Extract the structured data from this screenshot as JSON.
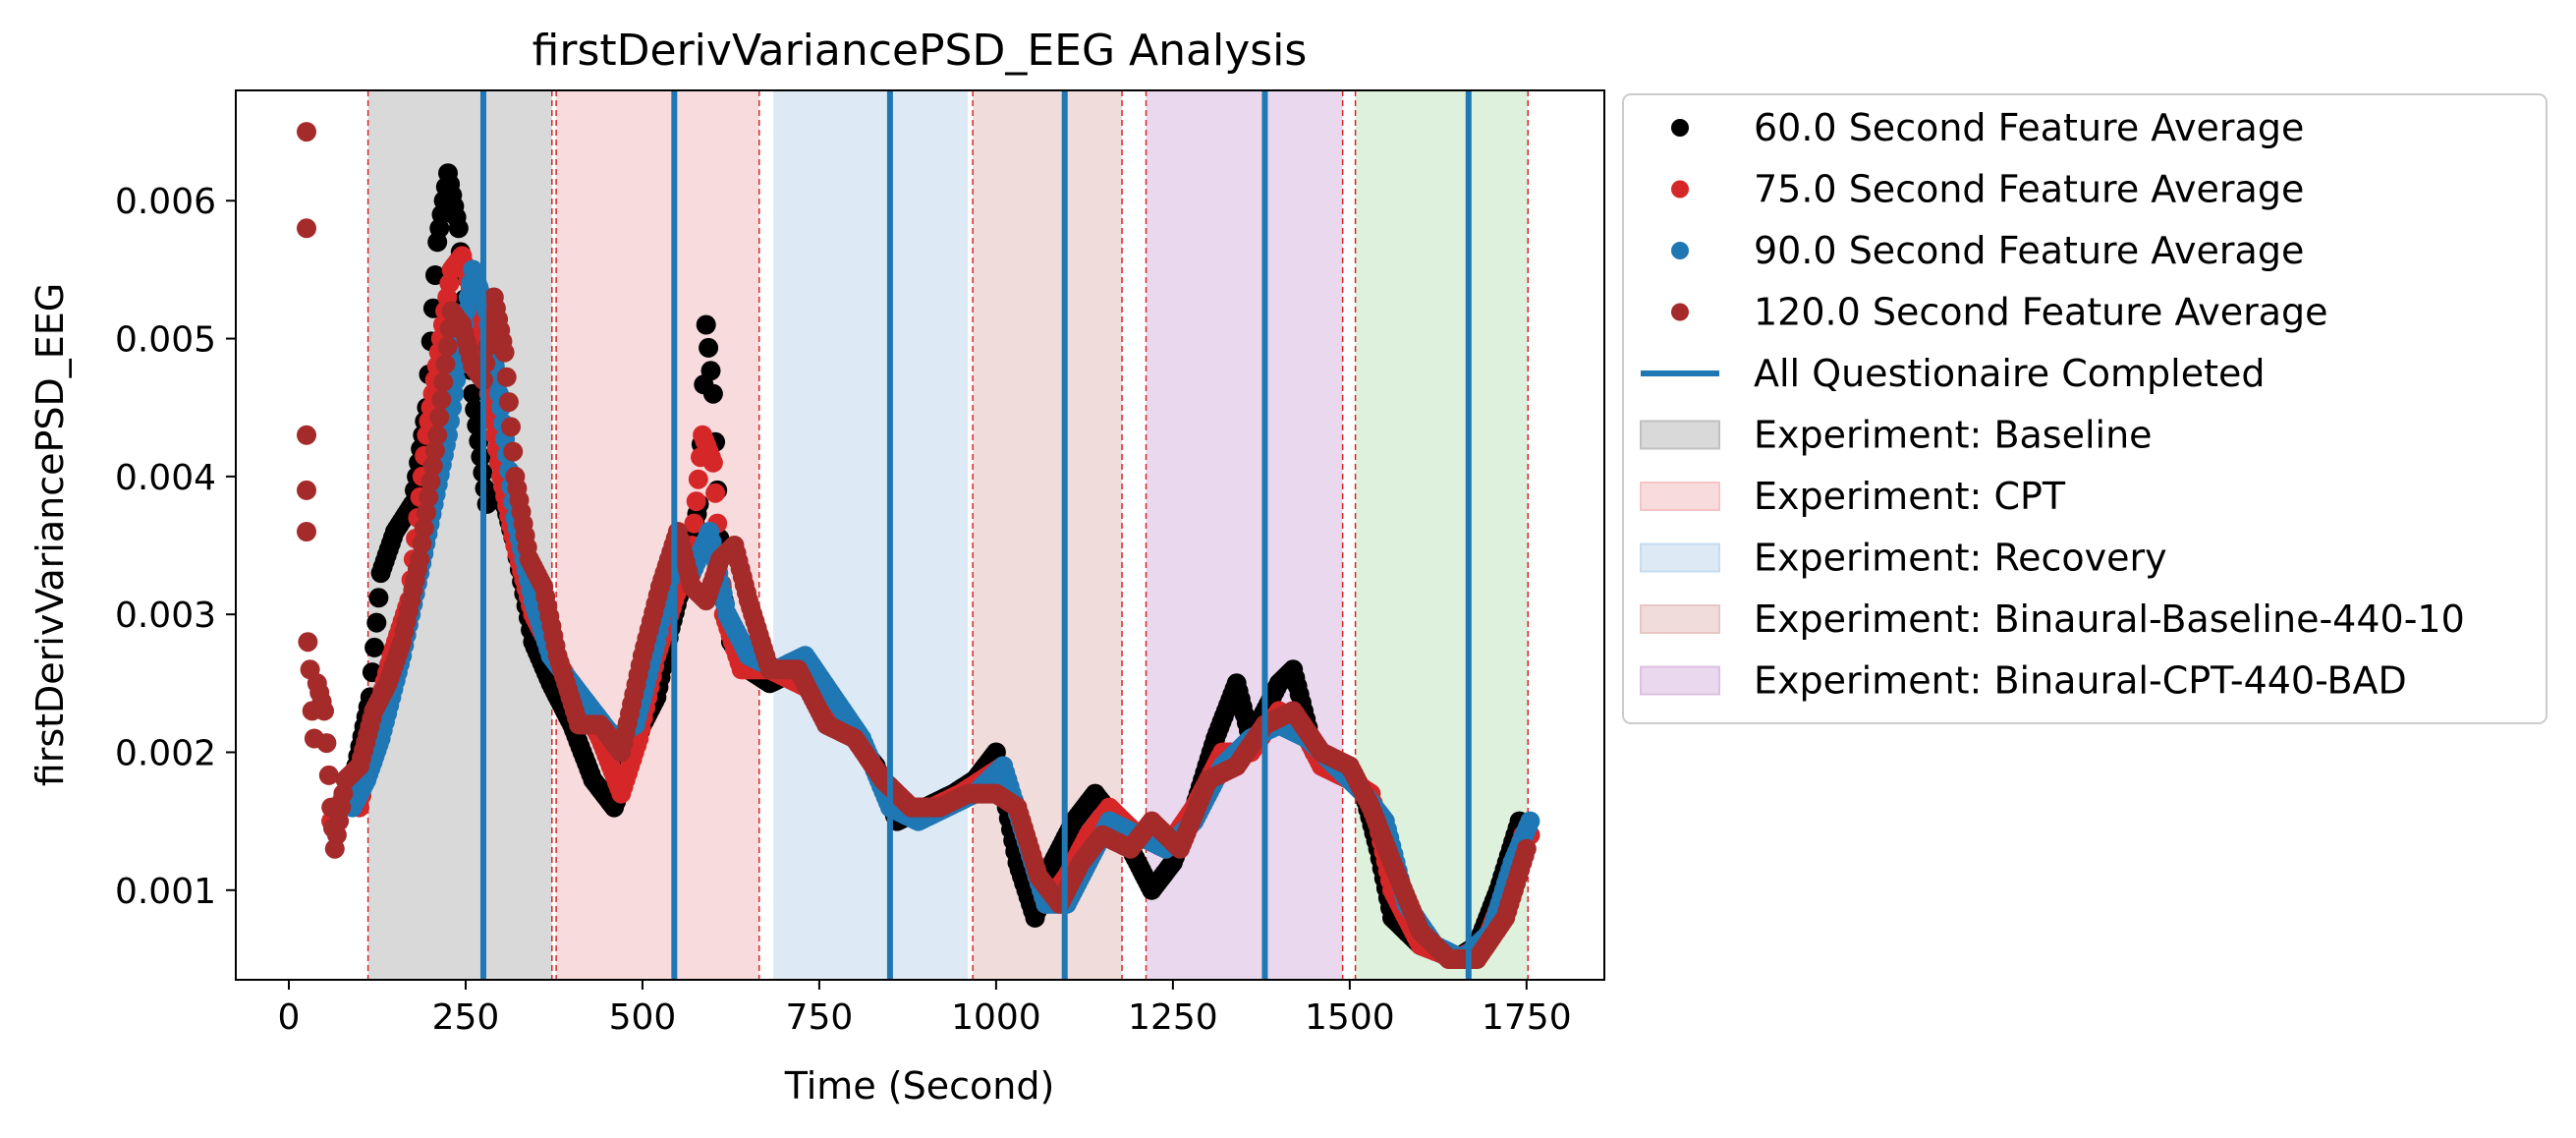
{
  "chart_data": {
    "type": "scatter",
    "title": "firstDerivVariancePSD_EEG Analysis",
    "xlabel": "Time (Second)",
    "ylabel": "firstDerivVariancePSD_EEG",
    "xlim": [
      -75,
      1860
    ],
    "ylim": [
      0.00035,
      0.0068
    ],
    "xticks": [
      0,
      250,
      500,
      750,
      1000,
      1250,
      1500,
      1750
    ],
    "yticks": [
      0.001,
      0.002,
      0.003,
      0.004,
      0.005,
      0.006
    ],
    "xtick_labels": [
      "0",
      "250",
      "500",
      "750",
      "1000",
      "1250",
      "1500",
      "1750"
    ],
    "ytick_labels": [
      "0.001",
      "0.002",
      "0.003",
      "0.004",
      "0.005",
      "0.006"
    ],
    "grid": false,
    "legend_position": "outside-right",
    "series": [
      {
        "name": "60.0 Second Feature Average",
        "color": "#000000",
        "points": [
          [
            60,
            0.0015
          ],
          [
            75,
            0.0016
          ],
          [
            95,
            0.0019
          ],
          [
            115,
            0.0024
          ],
          [
            130,
            0.0033
          ],
          [
            150,
            0.0036
          ],
          [
            175,
            0.0038
          ],
          [
            195,
            0.0045
          ],
          [
            210,
            0.0057
          ],
          [
            225,
            0.0062
          ],
          [
            240,
            0.0058
          ],
          [
            260,
            0.0046
          ],
          [
            280,
            0.0038
          ],
          [
            300,
            0.0039
          ],
          [
            320,
            0.0035
          ],
          [
            345,
            0.0028
          ],
          [
            370,
            0.0025
          ],
          [
            400,
            0.0022
          ],
          [
            430,
            0.0018
          ],
          [
            460,
            0.0016
          ],
          [
            480,
            0.0019
          ],
          [
            500,
            0.0022
          ],
          [
            520,
            0.0024
          ],
          [
            540,
            0.0029
          ],
          [
            560,
            0.0033
          ],
          [
            580,
            0.0038
          ],
          [
            590,
            0.0051
          ],
          [
            600,
            0.0046
          ],
          [
            612,
            0.0032
          ],
          [
            625,
            0.0028
          ],
          [
            650,
            0.0026
          ],
          [
            680,
            0.0025
          ],
          [
            720,
            0.0026
          ],
          [
            760,
            0.0023
          ],
          [
            800,
            0.0021
          ],
          [
            830,
            0.0019
          ],
          [
            860,
            0.0015
          ],
          [
            900,
            0.0016
          ],
          [
            940,
            0.0017
          ],
          [
            970,
            0.0018
          ],
          [
            1000,
            0.002
          ],
          [
            1030,
            0.0012
          ],
          [
            1055,
            0.0008
          ],
          [
            1080,
            0.0012
          ],
          [
            1110,
            0.0015
          ],
          [
            1140,
            0.0017
          ],
          [
            1170,
            0.0015
          ],
          [
            1200,
            0.0012
          ],
          [
            1220,
            0.001
          ],
          [
            1250,
            0.0012
          ],
          [
            1280,
            0.0016
          ],
          [
            1310,
            0.0021
          ],
          [
            1340,
            0.0025
          ],
          [
            1360,
            0.0021
          ],
          [
            1400,
            0.0025
          ],
          [
            1420,
            0.0026
          ],
          [
            1450,
            0.002
          ],
          [
            1480,
            0.0019
          ],
          [
            1520,
            0.0017
          ],
          [
            1540,
            0.0013
          ],
          [
            1560,
            0.0008
          ],
          [
            1600,
            0.0006
          ],
          [
            1650,
            0.0005
          ],
          [
            1680,
            0.0006
          ],
          [
            1710,
            0.001
          ],
          [
            1740,
            0.0015
          ],
          [
            1755,
            0.0014
          ]
        ]
      },
      {
        "name": "75.0 Second Feature Average",
        "color": "#d62728",
        "points": [
          [
            60,
            0.0015
          ],
          [
            80,
            0.0017
          ],
          [
            100,
            0.0016
          ],
          [
            120,
            0.0022
          ],
          [
            145,
            0.0027
          ],
          [
            170,
            0.0031
          ],
          [
            195,
            0.0043
          ],
          [
            215,
            0.005
          ],
          [
            230,
            0.0055
          ],
          [
            245,
            0.0056
          ],
          [
            260,
            0.0053
          ],
          [
            280,
            0.0047
          ],
          [
            300,
            0.004
          ],
          [
            320,
            0.0035
          ],
          [
            345,
            0.003
          ],
          [
            375,
            0.0027
          ],
          [
            410,
            0.0024
          ],
          [
            440,
            0.0021
          ],
          [
            470,
            0.0017
          ],
          [
            495,
            0.0021
          ],
          [
            520,
            0.0027
          ],
          [
            545,
            0.0031
          ],
          [
            570,
            0.0035
          ],
          [
            585,
            0.0043
          ],
          [
            600,
            0.0041
          ],
          [
            615,
            0.003
          ],
          [
            640,
            0.0026
          ],
          [
            680,
            0.0026
          ],
          [
            720,
            0.0025
          ],
          [
            760,
            0.0024
          ],
          [
            800,
            0.0021
          ],
          [
            840,
            0.0018
          ],
          [
            870,
            0.0016
          ],
          [
            910,
            0.0016
          ],
          [
            950,
            0.0017
          ],
          [
            980,
            0.0018
          ],
          [
            1010,
            0.0019
          ],
          [
            1040,
            0.0014
          ],
          [
            1070,
            0.0009
          ],
          [
            1100,
            0.0011
          ],
          [
            1130,
            0.0014
          ],
          [
            1160,
            0.0016
          ],
          [
            1200,
            0.0014
          ],
          [
            1240,
            0.0013
          ],
          [
            1280,
            0.0016
          ],
          [
            1320,
            0.002
          ],
          [
            1360,
            0.002
          ],
          [
            1400,
            0.0023
          ],
          [
            1430,
            0.0022
          ],
          [
            1460,
            0.0019
          ],
          [
            1500,
            0.0018
          ],
          [
            1530,
            0.0017
          ],
          [
            1560,
            0.001
          ],
          [
            1600,
            0.0006
          ],
          [
            1650,
            0.0005
          ],
          [
            1690,
            0.0006
          ],
          [
            1720,
            0.001
          ],
          [
            1745,
            0.0014
          ],
          [
            1755,
            0.0014
          ]
        ]
      },
      {
        "name": "90.0 Second Feature Average",
        "color": "#1f77b4",
        "points": [
          [
            90,
            0.0016
          ],
          [
            110,
            0.0018
          ],
          [
            130,
            0.0021
          ],
          [
            160,
            0.0027
          ],
          [
            185,
            0.0033
          ],
          [
            205,
            0.0038
          ],
          [
            225,
            0.0043
          ],
          [
            245,
            0.005
          ],
          [
            260,
            0.0055
          ],
          [
            280,
            0.0052
          ],
          [
            300,
            0.0045
          ],
          [
            320,
            0.0037
          ],
          [
            345,
            0.0031
          ],
          [
            370,
            0.0027
          ],
          [
            400,
            0.0025
          ],
          [
            430,
            0.0023
          ],
          [
            460,
            0.0021
          ],
          [
            490,
            0.0022
          ],
          [
            520,
            0.0028
          ],
          [
            545,
            0.0034
          ],
          [
            570,
            0.0033
          ],
          [
            595,
            0.0036
          ],
          [
            620,
            0.003
          ],
          [
            650,
            0.0027
          ],
          [
            690,
            0.0026
          ],
          [
            730,
            0.0027
          ],
          [
            770,
            0.0024
          ],
          [
            810,
            0.0021
          ],
          [
            850,
            0.0016
          ],
          [
            890,
            0.0015
          ],
          [
            930,
            0.0016
          ],
          [
            970,
            0.0017
          ],
          [
            1010,
            0.0019
          ],
          [
            1040,
            0.0014
          ],
          [
            1070,
            0.0009
          ],
          [
            1100,
            0.0009
          ],
          [
            1130,
            0.0012
          ],
          [
            1160,
            0.0015
          ],
          [
            1200,
            0.0014
          ],
          [
            1240,
            0.0013
          ],
          [
            1280,
            0.0015
          ],
          [
            1320,
            0.0019
          ],
          [
            1360,
            0.0021
          ],
          [
            1400,
            0.0022
          ],
          [
            1440,
            0.0021
          ],
          [
            1480,
            0.0019
          ],
          [
            1520,
            0.0017
          ],
          [
            1550,
            0.0015
          ],
          [
            1580,
            0.0009
          ],
          [
            1620,
            0.0006
          ],
          [
            1660,
            0.0005
          ],
          [
            1700,
            0.0007
          ],
          [
            1730,
            0.0012
          ],
          [
            1755,
            0.0015
          ]
        ]
      },
      {
        "name": "120.0 Second Feature Average",
        "color": "#a52a2a",
        "points": [
          [
            25,
            0.0065
          ],
          [
            25,
            0.0058
          ],
          [
            25,
            0.0043
          ],
          [
            25,
            0.0039
          ],
          [
            25,
            0.0036
          ],
          [
            27,
            0.0028
          ],
          [
            30,
            0.0026
          ],
          [
            33,
            0.0023
          ],
          [
            36,
            0.0021
          ],
          [
            40,
            0.0025
          ],
          [
            50,
            0.0023
          ],
          [
            60,
            0.0016
          ],
          [
            65,
            0.0013
          ],
          [
            80,
            0.0018
          ],
          [
            100,
            0.0019
          ],
          [
            120,
            0.0023
          ],
          [
            140,
            0.0025
          ],
          [
            160,
            0.0028
          ],
          [
            185,
            0.0034
          ],
          [
            210,
            0.0043
          ],
          [
            230,
            0.0052
          ],
          [
            245,
            0.0051
          ],
          [
            260,
            0.0048
          ],
          [
            275,
            0.0047
          ],
          [
            290,
            0.0053
          ],
          [
            305,
            0.0049
          ],
          [
            320,
            0.004
          ],
          [
            340,
            0.0034
          ],
          [
            360,
            0.0032
          ],
          [
            380,
            0.0027
          ],
          [
            410,
            0.0022
          ],
          [
            440,
            0.0022
          ],
          [
            470,
            0.002
          ],
          [
            500,
            0.0027
          ],
          [
            525,
            0.0032
          ],
          [
            550,
            0.0036
          ],
          [
            570,
            0.0032
          ],
          [
            590,
            0.0031
          ],
          [
            610,
            0.0034
          ],
          [
            630,
            0.0035
          ],
          [
            650,
            0.0031
          ],
          [
            680,
            0.0026
          ],
          [
            720,
            0.0026
          ],
          [
            760,
            0.0022
          ],
          [
            800,
            0.0021
          ],
          [
            840,
            0.0018
          ],
          [
            880,
            0.0016
          ],
          [
            920,
            0.0016
          ],
          [
            960,
            0.0017
          ],
          [
            1000,
            0.0017
          ],
          [
            1030,
            0.0016
          ],
          [
            1060,
            0.0011
          ],
          [
            1090,
            0.0009
          ],
          [
            1120,
            0.0012
          ],
          [
            1150,
            0.0014
          ],
          [
            1190,
            0.0013
          ],
          [
            1220,
            0.0015
          ],
          [
            1260,
            0.0013
          ],
          [
            1300,
            0.0018
          ],
          [
            1340,
            0.0019
          ],
          [
            1380,
            0.0022
          ],
          [
            1420,
            0.0023
          ],
          [
            1460,
            0.002
          ],
          [
            1500,
            0.0019
          ],
          [
            1530,
            0.0016
          ],
          [
            1560,
            0.0012
          ],
          [
            1600,
            0.0007
          ],
          [
            1640,
            0.0005
          ],
          [
            1680,
            0.0005
          ],
          [
            1720,
            0.0008
          ],
          [
            1750,
            0.0013
          ]
        ]
      }
    ],
    "questionnaire_line": {
      "name": "All Questionaire Completed",
      "color": "#1f77b4",
      "x": [
        275,
        545,
        850,
        1097,
        1380,
        1668
      ]
    },
    "experiment_regions": [
      {
        "name": "Experiment: Baseline",
        "color": "#bfbfbf",
        "x_start": 112,
        "x_end": 372,
        "show_in_legend": true
      },
      {
        "name": "Experiment: CPT",
        "color": "#f4c4c6",
        "x_start": 378,
        "x_end": 665,
        "show_in_legend": true
      },
      {
        "name": "Experiment: Recovery",
        "color": "#c6dcef",
        "x_start": 685,
        "x_end": 960,
        "show_in_legend": true
      },
      {
        "name": "Experiment: Binaural-Baseline-440-10",
        "color": "#e8c4c4",
        "x_start": 967,
        "x_end": 1178,
        "show_in_legend": true
      },
      {
        "name": "Experiment: Binaural-CPT-440-BAD",
        "color": "#dcbfe2",
        "x_start": 1212,
        "x_end": 1490,
        "show_in_legend": true
      },
      {
        "name": "",
        "color": "#c8e8c4",
        "x_start": 1508,
        "x_end": 1752,
        "show_in_legend": false
      }
    ],
    "boundary_lines": {
      "color": "#d62728",
      "x": [
        112,
        372,
        378,
        665,
        967,
        1178,
        1212,
        1490,
        1508,
        1752
      ]
    }
  }
}
